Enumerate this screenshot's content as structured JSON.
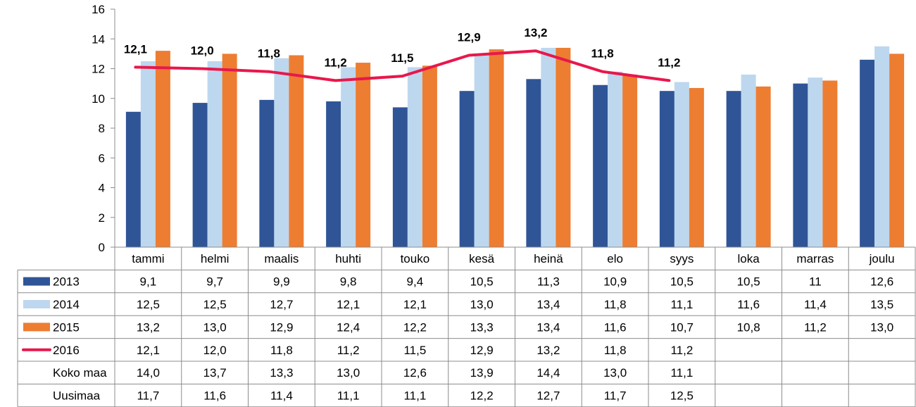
{
  "chart_data": {
    "type": "bar",
    "categories": [
      "tammi",
      "helmi",
      "maalis",
      "huhti",
      "touko",
      "kesä",
      "heinä",
      "elo",
      "syys",
      "loka",
      "marras",
      "joulu"
    ],
    "ylim": [
      0,
      16
    ],
    "yticks": [
      0,
      2,
      4,
      6,
      8,
      10,
      12,
      14,
      16
    ],
    "grid": false,
    "legend": "data table rows",
    "series": [
      {
        "name": "2013",
        "type": "bar",
        "color": "#2F5597",
        "values": [
          9.1,
          9.7,
          9.9,
          9.8,
          9.4,
          10.5,
          11.3,
          10.9,
          10.5,
          10.5,
          11,
          12.6
        ],
        "display": [
          "9,1",
          "9,7",
          "9,9",
          "9,8",
          "9,4",
          "10,5",
          "11,3",
          "10,9",
          "10,5",
          "10,5",
          "11",
          "12,6"
        ]
      },
      {
        "name": "2014",
        "type": "bar",
        "color": "#BDD7EE",
        "values": [
          12.5,
          12.5,
          12.7,
          12.1,
          12.1,
          13.0,
          13.4,
          11.8,
          11.1,
          11.6,
          11.4,
          13.5
        ],
        "display": [
          "12,5",
          "12,5",
          "12,7",
          "12,1",
          "12,1",
          "13,0",
          "13,4",
          "11,8",
          "11,1",
          "11,6",
          "11,4",
          "13,5"
        ]
      },
      {
        "name": "2015",
        "type": "bar",
        "color": "#ED7D31",
        "values": [
          13.2,
          13.0,
          12.9,
          12.4,
          12.2,
          13.3,
          13.4,
          11.6,
          10.7,
          10.8,
          11.2,
          13.0
        ],
        "display": [
          "13,2",
          "13,0",
          "12,9",
          "12,4",
          "12,2",
          "13,3",
          "13,4",
          "11,6",
          "10,7",
          "10,8",
          "11,2",
          "13,0"
        ]
      },
      {
        "name": "2016",
        "type": "line",
        "color": "#E8174C",
        "values": [
          12.1,
          12.0,
          11.8,
          11.2,
          11.5,
          12.9,
          13.2,
          11.8,
          11.2,
          null,
          null,
          null
        ],
        "display": [
          "12,1",
          "12,0",
          "11,8",
          "11,2",
          "11,5",
          "12,9",
          "13,2",
          "11,8",
          "11,2",
          "",
          "",
          ""
        ]
      },
      {
        "name": "Koko maa",
        "type": "table",
        "values": [
          14.0,
          13.7,
          13.3,
          13.0,
          12.6,
          13.9,
          14.4,
          13.0,
          11.1,
          null,
          null,
          null
        ],
        "display": [
          "14,0",
          "13,7",
          "13,3",
          "13,0",
          "12,6",
          "13,9",
          "14,4",
          "13,0",
          "11,1",
          "",
          "",
          ""
        ]
      },
      {
        "name": "Uusimaa",
        "type": "table",
        "values": [
          11.7,
          11.6,
          11.4,
          11.1,
          11.1,
          12.2,
          12.7,
          11.7,
          12.5,
          null,
          null,
          null
        ],
        "display": [
          "11,7",
          "11,6",
          "11,4",
          "11,1",
          "11,1",
          "12,2",
          "12,7",
          "11,7",
          "12,5",
          "",
          "",
          ""
        ]
      }
    ]
  }
}
